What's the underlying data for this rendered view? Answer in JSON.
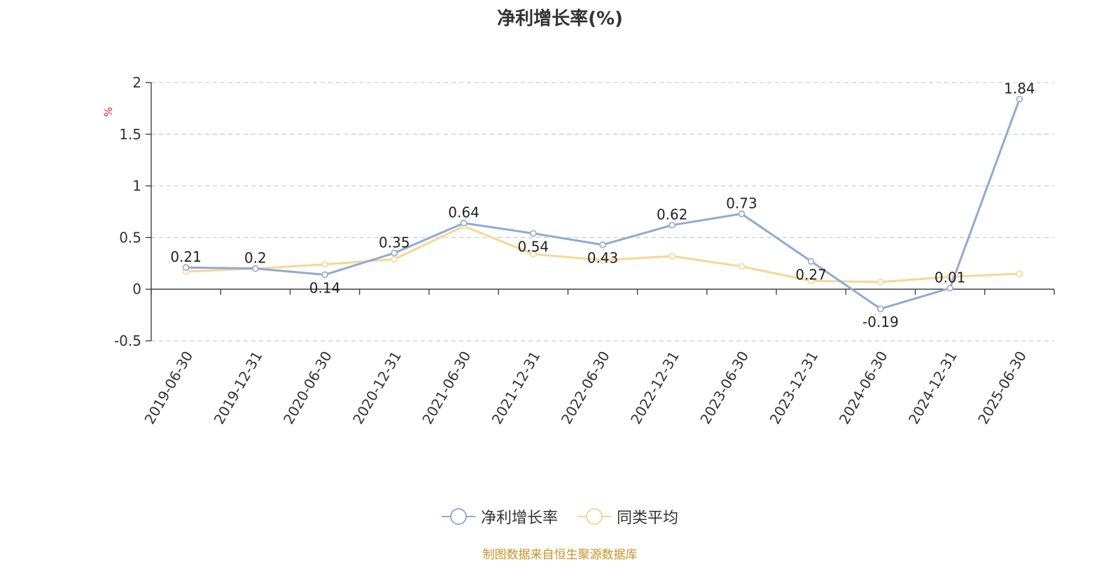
{
  "chart_data": {
    "type": "line",
    "title": "净利增长率(%)",
    "ylabel": "%",
    "xlabel": "",
    "categories": [
      "2019-06-30",
      "2019-12-31",
      "2020-06-30",
      "2020-12-31",
      "2021-06-30",
      "2021-12-31",
      "2022-06-30",
      "2022-12-31",
      "2023-06-30",
      "2023-12-31",
      "2024-06-30",
      "2024-12-31",
      "2025-06-30"
    ],
    "ylim": [
      -0.5,
      2
    ],
    "yticks": [
      "2",
      "1.5",
      "1",
      "0.5",
      "0",
      "-0.5"
    ],
    "grid": true,
    "legend_position": "bottom",
    "series": [
      {
        "name": "净利增长率",
        "color": "#8eaad6",
        "values": [
          0.21,
          0.2,
          0.14,
          0.35,
          0.64,
          0.54,
          0.43,
          0.62,
          0.73,
          0.27,
          -0.19,
          0.01,
          1.84
        ],
        "labels": [
          "0.21",
          "0.2",
          "0.14",
          "0.35",
          "0.64",
          "0.54",
          "0.43",
          "0.62",
          "0.73",
          "0.27",
          "-0.19",
          "0.01",
          "1.84"
        ]
      },
      {
        "name": "同类平均",
        "color": "#f9d593",
        "values": [
          0.17,
          0.2,
          0.24,
          0.29,
          0.61,
          0.34,
          0.28,
          0.32,
          0.22,
          0.08,
          0.07,
          0.12,
          0.15
        ]
      }
    ],
    "source_note": "制图数据来自恒生聚源数据库"
  }
}
